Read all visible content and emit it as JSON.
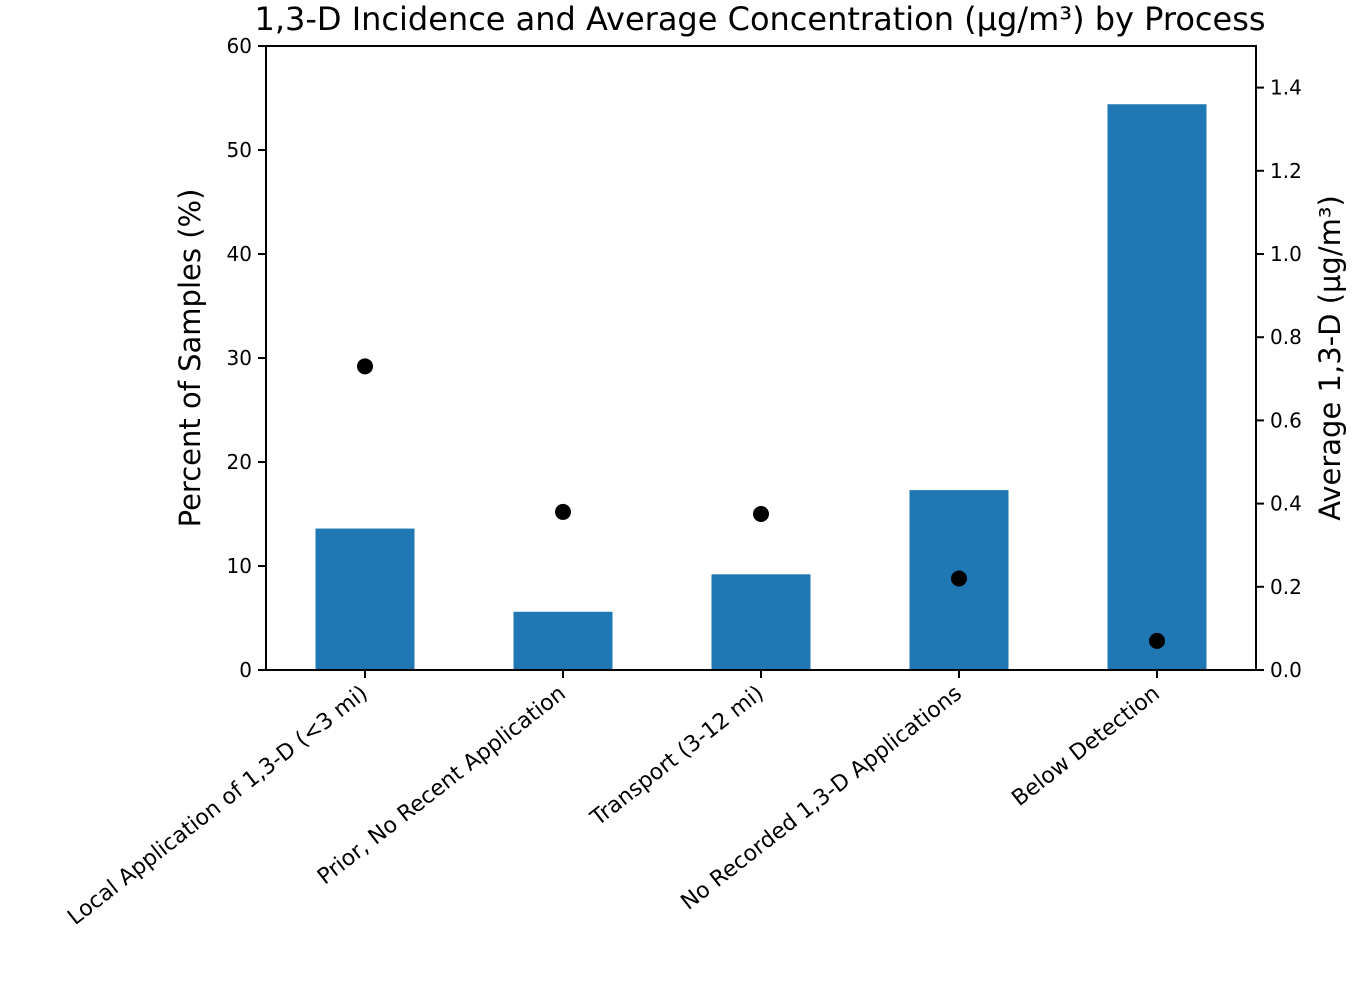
{
  "chart_data": {
    "type": "bar",
    "title": "1,3-D Incidence and Average Concentration (µg/m³) by Process",
    "categories": [
      "Local Application of 1,3-D (<3 mi)",
      "Prior, No Recent Application",
      "Transport (3-12 mi)",
      "No Recorded 1,3-D Applications",
      "Below Detection"
    ],
    "ylabel": "Percent of Samples (%)",
    "y2label": "Average 1,3-D (µg/m³)",
    "ylim": [
      0,
      60
    ],
    "y2lim": [
      0,
      1.5
    ],
    "yticks": [
      "0",
      "10",
      "20",
      "30",
      "40",
      "50",
      "60"
    ],
    "y2ticks": [
      "0.0",
      "0.2",
      "0.4",
      "0.6",
      "0.8",
      "1.0",
      "1.2",
      "1.4"
    ],
    "series": [
      {
        "type": "bar",
        "axis": "left",
        "color": "#1f77b4",
        "values": [
          13.6,
          5.6,
          9.2,
          17.3,
          54.4
        ]
      },
      {
        "type": "scatter",
        "axis": "right",
        "color": "#000000",
        "values": [
          0.73,
          0.38,
          0.375,
          0.22,
          0.07
        ]
      }
    ],
    "grid": false
  }
}
